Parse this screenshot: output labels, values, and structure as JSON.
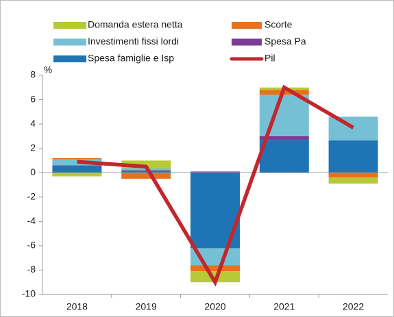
{
  "chart_data": {
    "type": "bar",
    "stacked": true,
    "y_unit": "%",
    "categories": [
      "2018",
      "2019",
      "2020",
      "2021",
      "2022"
    ],
    "series": [
      {
        "name": "Spesa famiglie e Isp",
        "color": "#1f74b5",
        "values": [
          0.55,
          0.15,
          -6.2,
          2.7,
          2.65
        ]
      },
      {
        "name": "Spesa Pa",
        "color": "#7c3b95",
        "values": [
          0.05,
          0.05,
          0.1,
          0.3,
          0.0
        ]
      },
      {
        "name": "Investimenti fissi lordi",
        "color": "#76c0d5",
        "values": [
          0.5,
          0.15,
          -1.4,
          3.4,
          1.95
        ]
      },
      {
        "name": "Scorte",
        "color": "#e8711d",
        "values": [
          0.1,
          -0.5,
          -0.5,
          0.4,
          -0.4
        ]
      },
      {
        "name": "Domanda estera netta",
        "color": "#b7c935",
        "values": [
          -0.3,
          0.65,
          -0.9,
          0.2,
          -0.5
        ]
      },
      {
        "name": "Pil",
        "color": "#c1272d",
        "type": "line",
        "values": [
          0.9,
          0.5,
          -9.0,
          7.0,
          3.7
        ]
      }
    ],
    "ylim": [
      -10,
      8
    ],
    "yticks": [
      -10,
      -8,
      -6,
      -4,
      -2,
      0,
      2,
      4,
      6,
      8
    ],
    "grid": false
  }
}
